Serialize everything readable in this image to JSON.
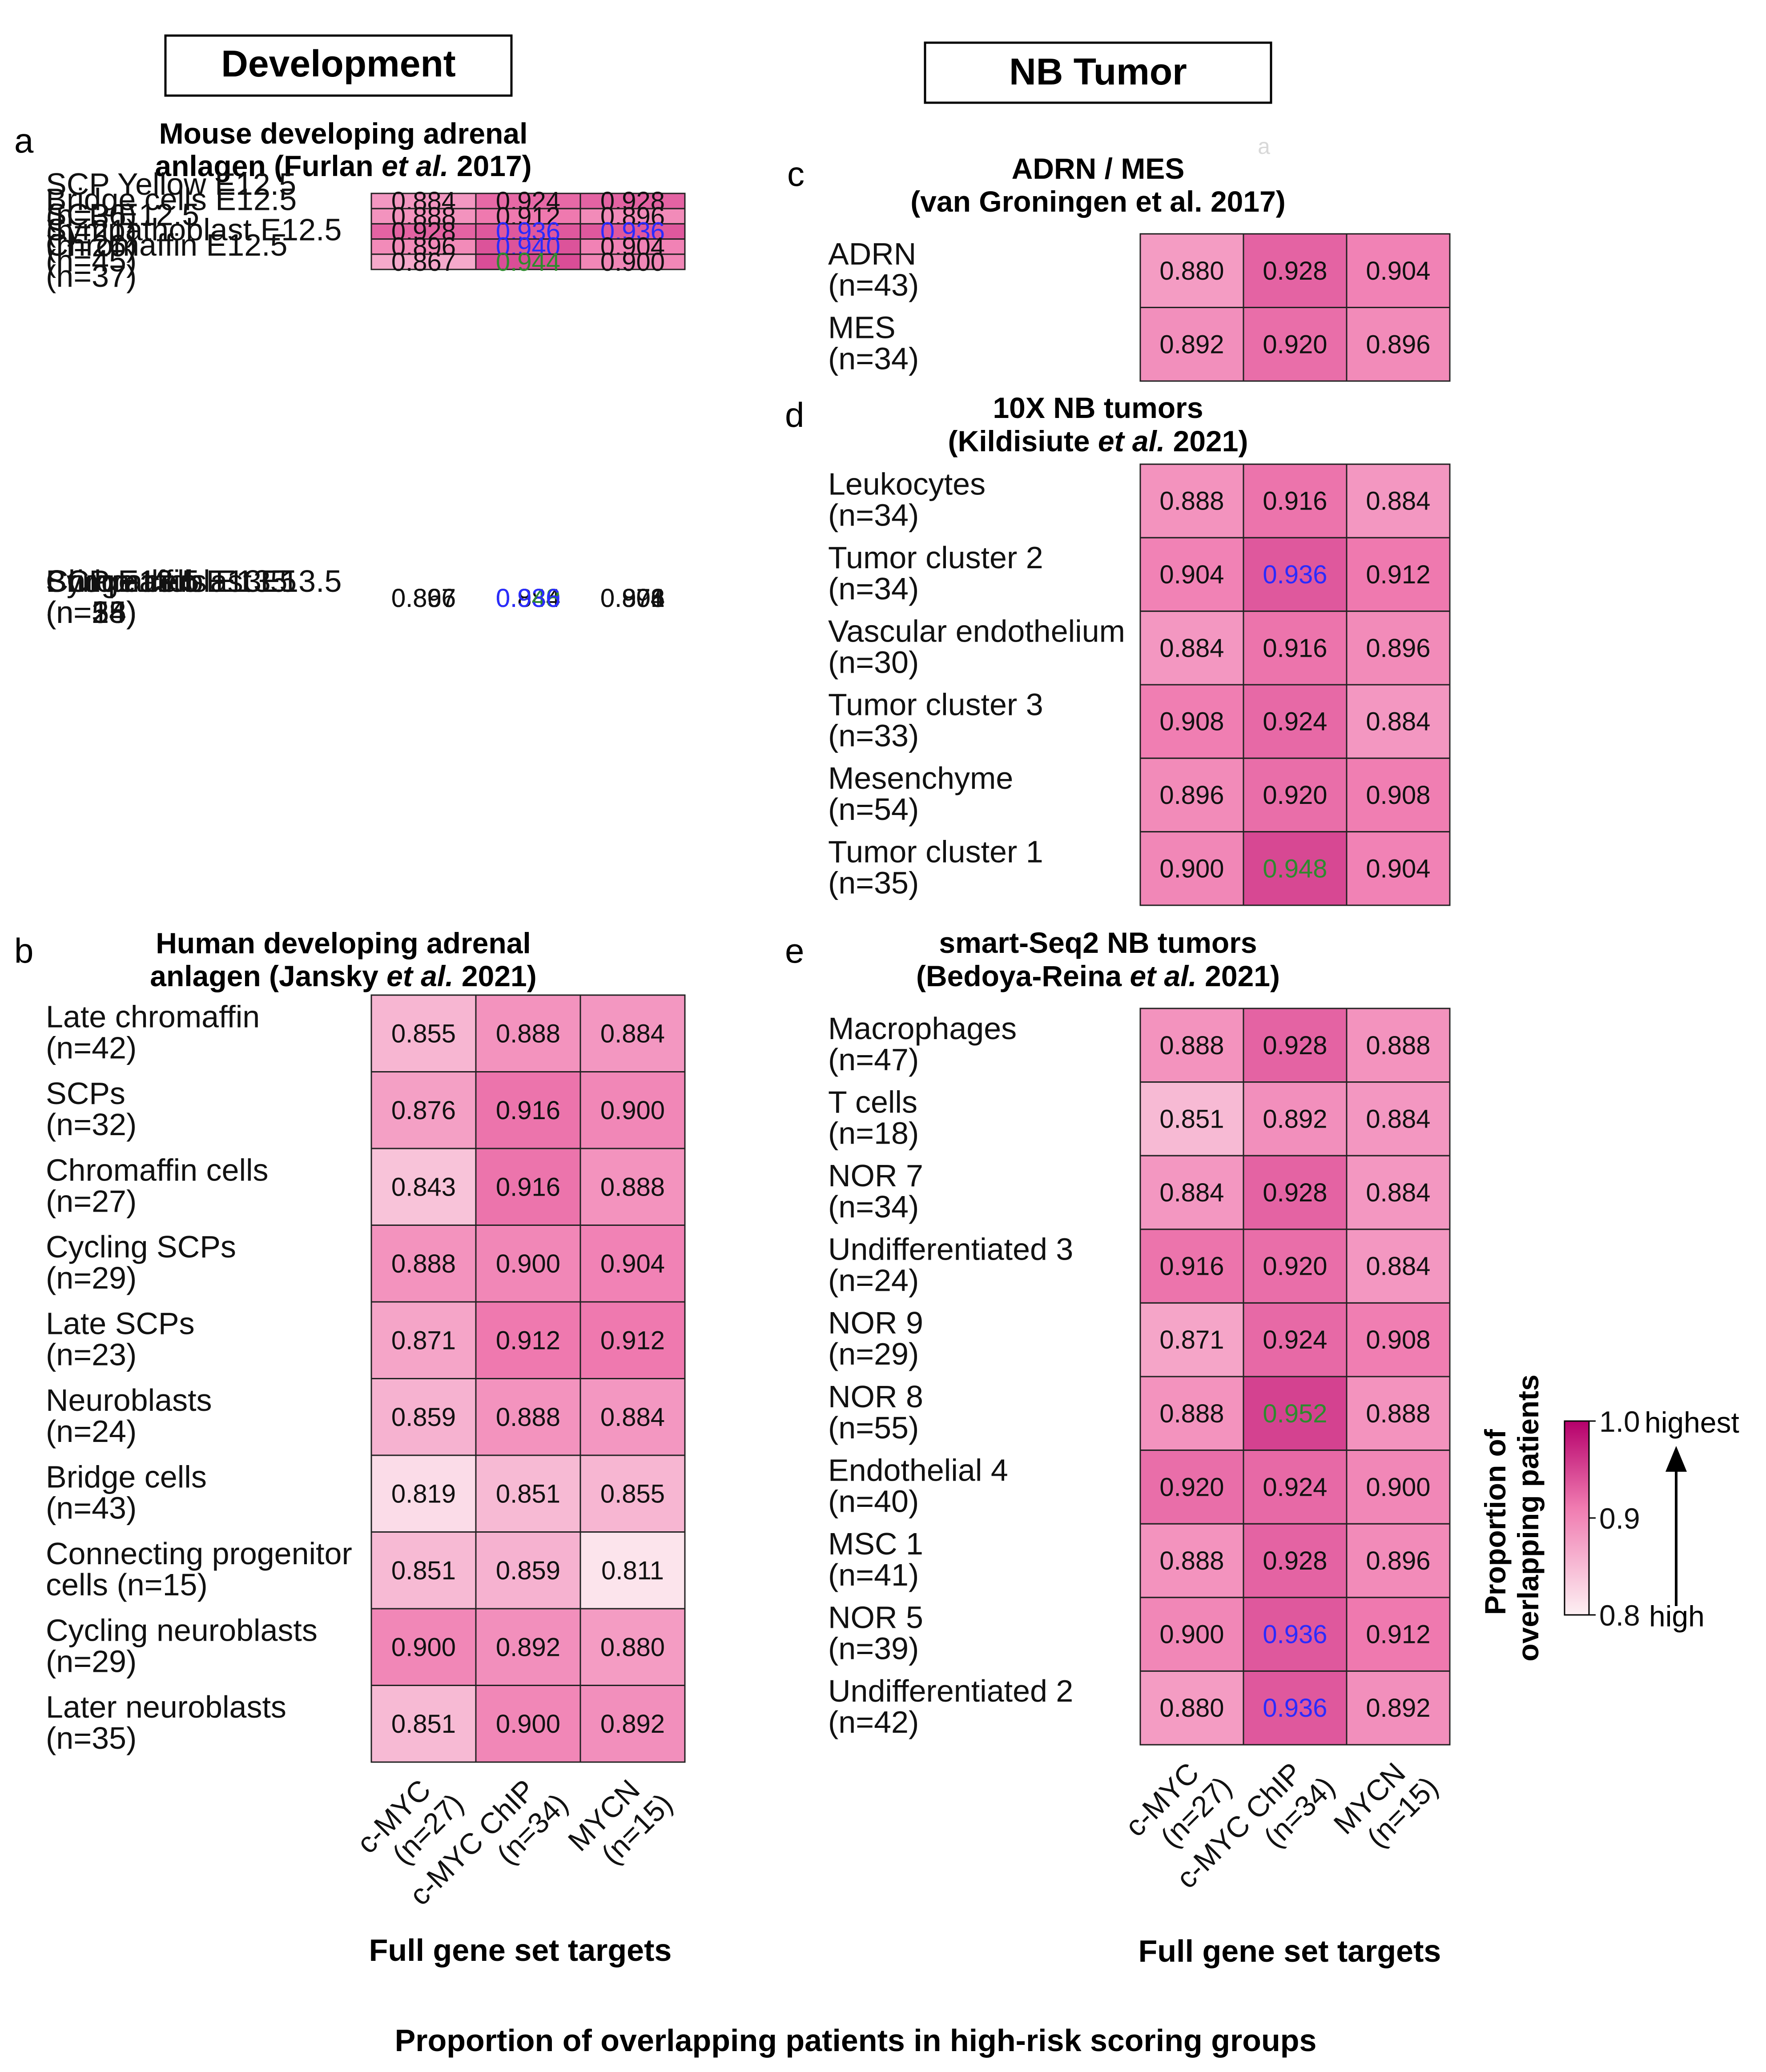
{
  "headers": {
    "development": "Development",
    "nb_tumor": "NB Tumor"
  },
  "figure_title": "Proportion of overlapping patients in high-risk scoring groups",
  "colors": {
    "low": "#fdf0f3",
    "high": "#b5006b",
    "text_default": "#111111",
    "text_blue": "#2b2bff",
    "text_green": "#2e8a2e"
  },
  "legend": {
    "title_line1": "Proportion of",
    "title_line2": "overlapping patients",
    "ticks": [
      {
        "label": "1.0",
        "value": 1.0
      },
      {
        "label": "0.9",
        "value": 0.9
      },
      {
        "label": "0.8",
        "value": 0.8
      }
    ],
    "highest_label": "highest",
    "high_label": "high"
  },
  "chart_data": [
    {
      "type": "heatmap",
      "panel": "a",
      "title_line1": "Mouse developing adrenal",
      "title_line2_pre": "anlagen (Furlan ",
      "title_italic": "et al.",
      "title_line2_post": " 2017)",
      "columns": [],
      "vmin": 0.8,
      "vmax": 1.0,
      "blocks": [
        {
          "rows": [
            {
              "label": "SCP Yellow E12.5",
              "n": "(n=36)",
              "values": [
                0.884,
                0.924,
                0.928
              ],
              "hl": [
                "",
                "",
                ""
              ]
            },
            {
              "label": "Bridge cells E12.5",
              "n": "(n=21)",
              "values": [
                0.888,
                0.912,
                0.896
              ],
              "hl": [
                "",
                "",
                ""
              ]
            },
            {
              "label": "SCP E12.5",
              "n": "(n=26)",
              "values": [
                0.928,
                0.936,
                0.936
              ],
              "hl": [
                "",
                "blue",
                "blue"
              ]
            },
            {
              "label": "Sympathoblast E12.5",
              "n": "(n=45)",
              "values": [
                0.896,
                0.94,
                0.904
              ],
              "hl": [
                "",
                "blue",
                ""
              ]
            },
            {
              "label": "Chromaffin E12.5",
              "n": "(n=37)",
              "values": [
                0.867,
                0.944,
                0.9
              ],
              "hl": [
                "",
                "green",
                ""
              ]
            }
          ]
        },
        {
          "rows": [
            {
              "label": "Bridge cells E13.5",
              "n": "(n=18)",
              "values": [
                0.896,
                0.884,
                0.871
              ],
              "hl": [
                "",
                "",
                ""
              ]
            },
            {
              "label": "SCP E13.5",
              "n": "(n=34)",
              "values": [
                0.896,
                0.94,
                0.908
              ],
              "hl": [
                "",
                "blue",
                ""
              ]
            },
            {
              "label": "Sympathoblast E13.5",
              "n": "(n=55)",
              "values": [
                0.896,
                0.948,
                0.904
              ],
              "hl": [
                "",
                "green",
                ""
              ]
            },
            {
              "label": "Chromaffin E13.5",
              "n": "(n=28)",
              "values": [
                0.867,
                0.936,
                0.896
              ],
              "hl": [
                "",
                "blue",
                ""
              ]
            }
          ]
        }
      ]
    },
    {
      "type": "heatmap",
      "panel": "b",
      "title_line1": "Human developing adrenal",
      "title_line2_pre": "anlagen (Jansky ",
      "title_italic": "et al.",
      "title_line2_post": " 2021)",
      "columns": [],
      "vmin": 0.8,
      "vmax": 1.0,
      "blocks": [
        {
          "rows": [
            {
              "label": "Late chromaffin",
              "n": "(n=42)",
              "values": [
                0.855,
                0.888,
                0.884
              ],
              "hl": [
                "",
                "",
                ""
              ]
            },
            {
              "label": "SCPs",
              "n": "(n=32)",
              "values": [
                0.876,
                0.916,
                0.9
              ],
              "hl": [
                "",
                "",
                ""
              ]
            },
            {
              "label": "Chromaffin cells",
              "n": "(n=27)",
              "values": [
                0.843,
                0.916,
                0.888
              ],
              "hl": [
                "",
                "",
                ""
              ]
            },
            {
              "label": "Cycling SCPs",
              "n": "(n=29)",
              "values": [
                0.888,
                0.9,
                0.904
              ],
              "hl": [
                "",
                "",
                ""
              ]
            },
            {
              "label": "Late SCPs",
              "n": "(n=23)",
              "values": [
                0.871,
                0.912,
                0.912
              ],
              "hl": [
                "",
                "",
                ""
              ]
            },
            {
              "label": "Neuroblasts",
              "n": "(n=24)",
              "values": [
                0.859,
                0.888,
                0.884
              ],
              "hl": [
                "",
                "",
                ""
              ]
            },
            {
              "label": "Bridge cells",
              "n": "(n=43)",
              "values": [
                0.819,
                0.851,
                0.855
              ],
              "hl": [
                "",
                "",
                ""
              ]
            },
            {
              "label": "Connecting progenitor",
              "n": "cells (n=15)",
              "values": [
                0.851,
                0.859,
                0.811
              ],
              "hl": [
                "",
                "",
                ""
              ]
            },
            {
              "label": "Cycling neuroblasts",
              "n": "(n=29)",
              "values": [
                0.9,
                0.892,
                0.88
              ],
              "hl": [
                "",
                "",
                ""
              ]
            },
            {
              "label": "Later neuroblasts",
              "n": "(n=35)",
              "values": [
                0.851,
                0.9,
                0.892
              ],
              "hl": [
                "",
                "",
                ""
              ]
            }
          ]
        }
      ],
      "x_title": "Full gene set targets",
      "column_labels": [
        {
          "line1": "c-MYC",
          "line2": "(n=27)"
        },
        {
          "line1": "c-MYC ChIP",
          "line2": "(n=34)"
        },
        {
          "line1": "MYCN",
          "line2": "(n=15)"
        }
      ]
    },
    {
      "type": "heatmap",
      "panel": "c",
      "title_line1": "ADRN / MES",
      "title_line2_pre": "(van Groningen et al. 2017)",
      "title_italic": "",
      "title_line2_post": "",
      "vmin": 0.8,
      "vmax": 1.0,
      "blocks": [
        {
          "rows": [
            {
              "label": "ADRN",
              "n": "(n=43)",
              "values": [
                0.88,
                0.928,
                0.904
              ],
              "hl": [
                "",
                "",
                ""
              ]
            },
            {
              "label": "MES",
              "n": "(n=34)",
              "values": [
                0.892,
                0.92,
                0.896
              ],
              "hl": [
                "",
                "",
                ""
              ]
            }
          ]
        }
      ]
    },
    {
      "type": "heatmap",
      "panel": "d",
      "title_line1": "10X NB tumors",
      "title_line2_pre": "(Kildisiute ",
      "title_italic": "et al.",
      "title_line2_post": " 2021)",
      "vmin": 0.8,
      "vmax": 1.0,
      "blocks": [
        {
          "rows": [
            {
              "label": "Leukocytes",
              "n": "(n=34)",
              "values": [
                0.888,
                0.916,
                0.884
              ],
              "hl": [
                "",
                "",
                ""
              ]
            },
            {
              "label": "Tumor cluster 2",
              "n": "(n=34)",
              "values": [
                0.904,
                0.936,
                0.912
              ],
              "hl": [
                "",
                "blue",
                ""
              ]
            },
            {
              "label": "Vascular endothelium",
              "n": "(n=30)",
              "values": [
                0.884,
                0.916,
                0.896
              ],
              "hl": [
                "",
                "",
                ""
              ]
            },
            {
              "label": "Tumor cluster 3",
              "n": "(n=33)",
              "values": [
                0.908,
                0.924,
                0.884
              ],
              "hl": [
                "",
                "",
                ""
              ]
            },
            {
              "label": "Mesenchyme",
              "n": "(n=54)",
              "values": [
                0.896,
                0.92,
                0.908
              ],
              "hl": [
                "",
                "",
                ""
              ]
            },
            {
              "label": "Tumor cluster 1",
              "n": "(n=35)",
              "values": [
                0.9,
                0.948,
                0.904
              ],
              "hl": [
                "",
                "green",
                ""
              ]
            }
          ]
        }
      ]
    },
    {
      "type": "heatmap",
      "panel": "e",
      "title_line1": "smart-Seq2 NB tumors",
      "title_line2_pre": "(Bedoya-Reina ",
      "title_italic": "et al.",
      "title_line2_post": " 2021)",
      "vmin": 0.8,
      "vmax": 1.0,
      "blocks": [
        {
          "rows": [
            {
              "label": "Macrophages",
              "n": "(n=47)",
              "values": [
                0.888,
                0.928,
                0.888
              ],
              "hl": [
                "",
                "",
                ""
              ]
            },
            {
              "label": "T cells",
              "n": "(n=18)",
              "values": [
                0.851,
                0.892,
                0.884
              ],
              "hl": [
                "",
                "",
                ""
              ]
            },
            {
              "label": "NOR 7",
              "n": "(n=34)",
              "values": [
                0.884,
                0.928,
                0.884
              ],
              "hl": [
                "",
                "",
                ""
              ]
            },
            {
              "label": "Undifferentiated 3",
              "n": "(n=24)",
              "values": [
                0.916,
                0.92,
                0.884
              ],
              "hl": [
                "",
                "",
                ""
              ]
            },
            {
              "label": "NOR 9",
              "n": "(n=29)",
              "values": [
                0.871,
                0.924,
                0.908
              ],
              "hl": [
                "",
                "",
                ""
              ]
            },
            {
              "label": "NOR 8",
              "n": "(n=55)",
              "values": [
                0.888,
                0.952,
                0.888
              ],
              "hl": [
                "",
                "green",
                ""
              ]
            },
            {
              "label": "Endothelial 4",
              "n": "(n=40)",
              "values": [
                0.92,
                0.924,
                0.9
              ],
              "hl": [
                "",
                "",
                ""
              ]
            },
            {
              "label": "MSC 1",
              "n": "(n=41)",
              "values": [
                0.888,
                0.928,
                0.896
              ],
              "hl": [
                "",
                "",
                ""
              ]
            },
            {
              "label": "NOR 5",
              "n": "(n=39)",
              "values": [
                0.9,
                0.936,
                0.912
              ],
              "hl": [
                "",
                "blue",
                ""
              ]
            },
            {
              "label": "Undifferentiated 2",
              "n": "(n=42)",
              "values": [
                0.88,
                0.936,
                0.892
              ],
              "hl": [
                "",
                "blue",
                ""
              ]
            }
          ]
        }
      ],
      "x_title": "Full gene set targets",
      "column_labels": [
        {
          "line1": "c-MYC",
          "line2": "(n=27)"
        },
        {
          "line1": "c-MYC ChIP",
          "line2": "(n=34)"
        },
        {
          "line1": "MYCN",
          "line2": "(n=15)"
        }
      ]
    }
  ]
}
